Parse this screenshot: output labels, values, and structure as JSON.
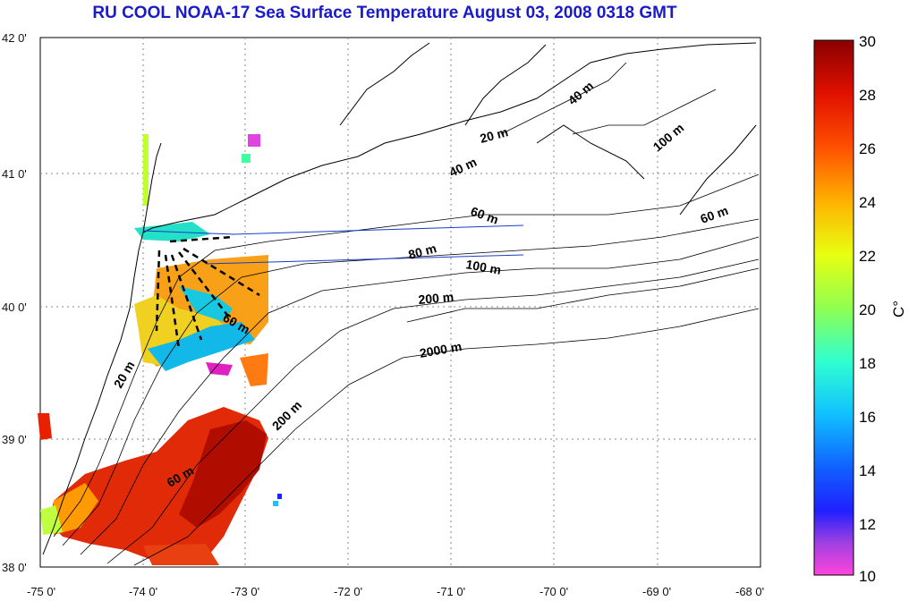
{
  "title": "RU COOL  NOAA-17 Sea Surface Temperature August 03, 2008 0318 GMT",
  "axes": {
    "lon_ticks": [
      "-75 0'",
      "-74 0'",
      "-73 0'",
      "-72 0'",
      "-71 0'",
      "-70 0'",
      "-69 0'",
      "-68 0'"
    ],
    "lat_ticks": [
      "42 0'",
      "41 0'",
      "40 0'",
      "39 0'",
      "38 0'"
    ]
  },
  "colorbar": {
    "unit_label": "C°",
    "ticks": [
      "30",
      "28",
      "26",
      "24",
      "22",
      "20",
      "18",
      "16",
      "14",
      "12",
      "10"
    ],
    "min": 10,
    "max": 30
  },
  "contour_labels": [
    "40 m",
    "20 m",
    "40 m",
    "100 m",
    "60 m",
    "60 m",
    "80 m",
    "100 m",
    "200 m",
    "2000 m",
    "60 m",
    "200 m",
    "20 m",
    "60 m"
  ],
  "colors": {
    "title": "#1a1ac8",
    "land_outline": "#000000",
    "transect": "#1a3cc8"
  }
}
